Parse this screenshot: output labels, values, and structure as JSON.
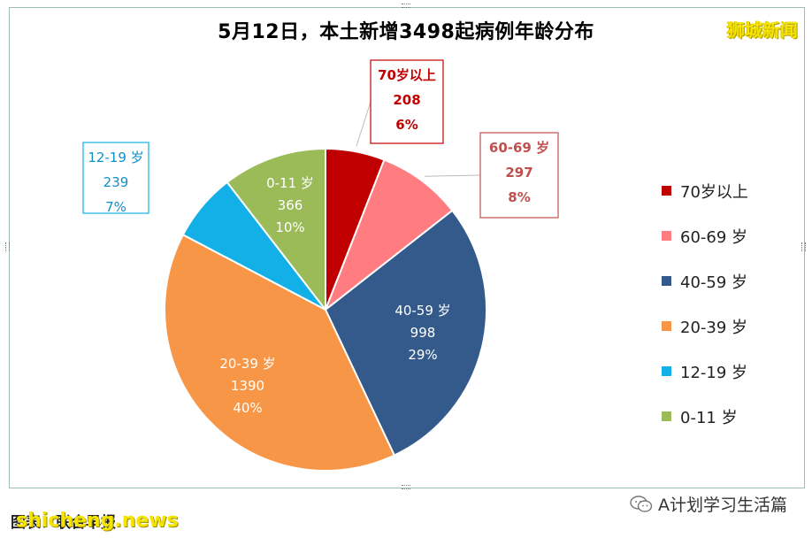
{
  "title": "5月12日，本土新增3498起病例年龄分布",
  "brand": "狮城新闻",
  "footer": {
    "source": "图表：联合早报",
    "watermark": "shicheng.news",
    "account": "A计划学习生活篇"
  },
  "chart_data": {
    "type": "pie",
    "title": "5月12日，本土新增3498起病例年龄分布",
    "total": 3498,
    "legend_position": "right",
    "slices": [
      {
        "label": "70岁以上",
        "legend": "70岁以上",
        "count_label": "208",
        "pct_label": "6%",
        "value": 208,
        "color": "#c00000"
      },
      {
        "label": "60-69 岁",
        "legend": "60-69 岁",
        "count_label": "297",
        "pct_label": "8%",
        "value": 297,
        "color": "#ff7c80"
      },
      {
        "label": "40-59 岁",
        "legend": "40-59 岁",
        "count_label": "998",
        "pct_label": "29%",
        "value": 998,
        "color": "#335a8a"
      },
      {
        "label": "20-39 岁",
        "legend": "20-39 岁",
        "count_label": "1390",
        "pct_label": "40%",
        "value": 1390,
        "color": "#f79646"
      },
      {
        "label": "12-19 岁",
        "legend": "12-19 岁",
        "count_label": "239",
        "pct_label": "7%",
        "value": 239,
        "color": "#12b0e6"
      },
      {
        "label": "0-11 岁",
        "legend": "0-11 岁",
        "count_label": "366",
        "pct_label": "10%",
        "value": 366,
        "color": "#9bbb59"
      }
    ]
  }
}
